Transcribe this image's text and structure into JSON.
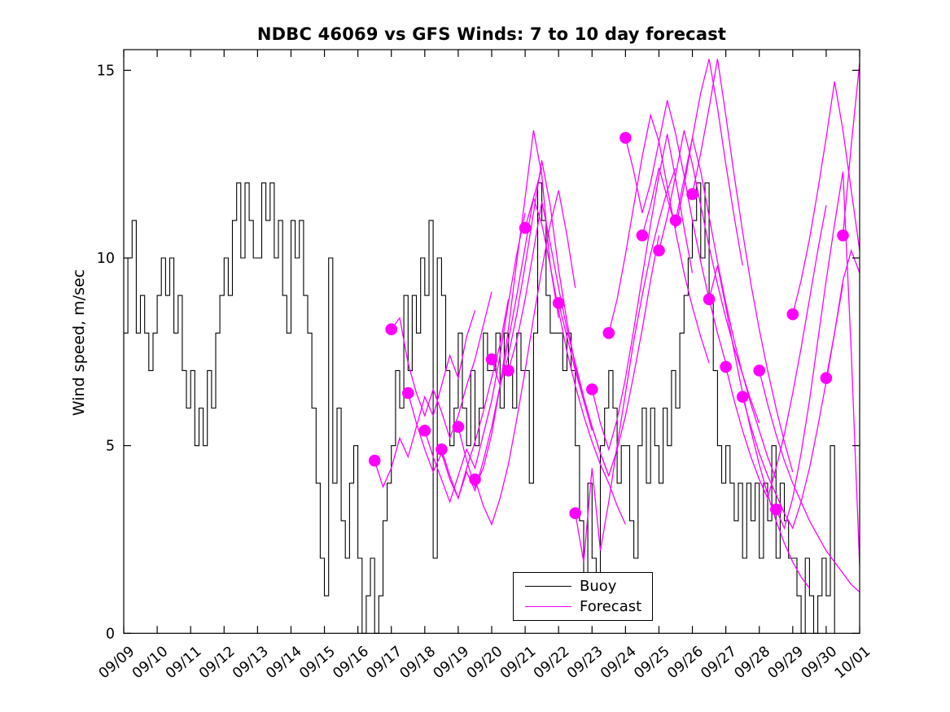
{
  "title": "NDBC 46069 vs GFS Winds: 7 to 10 day forecast",
  "y_axis": {
    "label": "Wind speed, m/sec",
    "tick_labels": [
      "0",
      "5",
      "10",
      "15"
    ],
    "tick_values": [
      0,
      5,
      10,
      15
    ]
  },
  "x_axis": {
    "tick_labels": [
      "09/09",
      "09/10",
      "09/11",
      "09/12",
      "09/13",
      "09/14",
      "09/15",
      "09/16",
      "09/17",
      "09/18",
      "09/19",
      "09/20",
      "09/21",
      "09/22",
      "09/23",
      "09/24",
      "09/25",
      "09/26",
      "09/27",
      "09/28",
      "09/29",
      "09/30",
      "10/01"
    ]
  },
  "legend": {
    "items": [
      {
        "label": "Buoy",
        "color": "#000000"
      },
      {
        "label": "Forecast",
        "color": "#FF00FF"
      }
    ]
  },
  "colors": {
    "buoy": "#000000",
    "forecast": "#FF00FF",
    "axis": "#000000",
    "background": "#FFFFFF"
  },
  "chart_data": {
    "type": "line",
    "title": "NDBC 46069 vs GFS Winds: 7 to 10 day forecast",
    "xlabel": "",
    "ylabel": "Wind speed, m/sec",
    "xlim_days": [
      0,
      22
    ],
    "ylim": [
      0,
      15.55
    ],
    "grid": false,
    "legend_position": "lower-center-right",
    "x_day0_label": "09/09",
    "buoy_series": {
      "name": "Buoy",
      "style": "stairs",
      "t_start_days": 0,
      "t_step_days": 0.125,
      "values": [
        8,
        10,
        11,
        8,
        9,
        8,
        7,
        8,
        9,
        10,
        9,
        10,
        8,
        9,
        7,
        6,
        7,
        5,
        6,
        5,
        7,
        6,
        8,
        9,
        10,
        9,
        11,
        12,
        10,
        12,
        11,
        10,
        10,
        12,
        11,
        12,
        10,
        11,
        9,
        8,
        11,
        10,
        11,
        9,
        8,
        6,
        4,
        2,
        1,
        10,
        4,
        6,
        3,
        2,
        4,
        5,
        2,
        0,
        1,
        2,
        0,
        1,
        3,
        4,
        5,
        7,
        6,
        9,
        7,
        9,
        8,
        10,
        9,
        11,
        2,
        10,
        9,
        7,
        5,
        6,
        8,
        6,
        5,
        7,
        5,
        6,
        8,
        7,
        7,
        8,
        6,
        8,
        7,
        6,
        8,
        7,
        7,
        4,
        8,
        12,
        11,
        9,
        8,
        8,
        8,
        7,
        8,
        7,
        5,
        3,
        1,
        4,
        2,
        1,
        5,
        6,
        7,
        6,
        4,
        5,
        5,
        3,
        2,
        5,
        6,
        4,
        6,
        5,
        4,
        6,
        5,
        7,
        6,
        8,
        9,
        10,
        11,
        12,
        10,
        12,
        9,
        7,
        5,
        4,
        5,
        4,
        3,
        4,
        2,
        4,
        3,
        4,
        2,
        4,
        3,
        5,
        2,
        4,
        3,
        2,
        2,
        1,
        0,
        2,
        1,
        0,
        1,
        2,
        1,
        5,
        0
      ]
    },
    "forecast_segments": {
      "name": "Forecast",
      "t_step_days": 0.25,
      "segments": [
        {
          "start": 7.5,
          "values": [
            4.6,
            3.9,
            4.4,
            5.2,
            4.7,
            5.5,
            6.3,
            5.8,
            6.6,
            7.4,
            6.8,
            7.9,
            8.6
          ]
        },
        {
          "start": 8,
          "values": [
            8.1,
            8.4,
            7.2,
            6.4,
            5.8,
            6.5,
            5.9,
            5.2,
            5.8,
            6.6,
            7.3,
            8.2,
            9.1
          ]
        },
        {
          "start": 8.5,
          "values": [
            6.4,
            5.6,
            4.9,
            4.3,
            4.8,
            4.1,
            3.6,
            4.4,
            5.1,
            5.9,
            6.8,
            7.7,
            8.9
          ]
        },
        {
          "start": 9,
          "values": [
            5.4,
            4.7,
            4.1,
            3.5,
            4.2,
            4.9,
            4.4,
            5.3,
            6.2,
            7.4,
            8.8,
            10.1,
            11.2
          ]
        },
        {
          "start": 9.5,
          "values": [
            4.9,
            4.2,
            3.6,
            4.3,
            3.8,
            4.6,
            5.5,
            6.6,
            7.8,
            9,
            10.3,
            11.6,
            12.4
          ]
        },
        {
          "start": 10,
          "values": [
            5.5,
            4.6,
            3.9,
            4.4,
            5.3,
            6.6,
            8.1,
            9.9,
            11.6,
            13.4,
            12.2,
            9.8,
            8.4
          ]
        },
        {
          "start": 10.5,
          "values": [
            4.1,
            3.4,
            2.9,
            3.6,
            4.5,
            5.7,
            7,
            8.4,
            9.7,
            10.9,
            11.8,
            10.6,
            9.2
          ]
        },
        {
          "start": 11,
          "values": [
            7.3,
            6.6,
            7.4,
            8.5,
            9.8,
            11.2,
            12.6,
            11.4,
            9.7,
            8.3,
            7.1,
            6.2,
            5.4
          ]
        },
        {
          "start": 11.5,
          "values": [
            7,
            7.8,
            8.9,
            10.2,
            11.5,
            10.4,
            9.2,
            8.1,
            7.2,
            6.3,
            5.5,
            4.8,
            4.2
          ]
        },
        {
          "start": 12,
          "values": [
            10.8,
            11.6,
            10.9,
            9.8,
            8.6,
            7.5,
            6.6,
            5.8,
            5.1,
            4.5,
            4,
            3.4,
            2.9
          ]
        },
        {
          "start": 13,
          "values": [
            8.8,
            7.9,
            7,
            6.2,
            5.5,
            4.8,
            4.2,
            4.9,
            5.8,
            6.9,
            8.1,
            9.4,
            10.6
          ]
        },
        {
          "start": 13.5,
          "values": [
            3.2,
            1.9,
            4.4,
            2.2,
            3.5,
            5,
            6.4,
            7.8,
            9,
            10.1,
            11,
            11.8,
            12.4
          ]
        },
        {
          "start": 14,
          "values": [
            6.5,
            5.6,
            4.9,
            5.7,
            6.8,
            8.1,
            9.5,
            10.9,
            12.2,
            13.3,
            12.1,
            10.8,
            9.6
          ]
        },
        {
          "start": 14.5,
          "values": [
            8,
            8.9,
            10.1,
            11.4,
            12.7,
            13.8,
            13.1,
            11.9,
            10.7,
            9.6,
            8.7,
            7.9,
            7.2
          ]
        },
        {
          "start": 15,
          "values": [
            13.2,
            12.3,
            11.2,
            12,
            13.1,
            14.2,
            13.3,
            12.2,
            11,
            9.9,
            8.9,
            8,
            7.2
          ]
        },
        {
          "start": 15.5,
          "values": [
            10.6,
            11.4,
            12.4,
            11.6,
            10.8,
            11.9,
            13.2,
            14.4,
            15.3,
            14,
            12.5,
            11.1,
            9.8
          ]
        },
        {
          "start": 16,
          "values": [
            10.2,
            11.1,
            12.2,
            13.4,
            12.5,
            11.4,
            10.3,
            9.3,
            8.4,
            7.6,
            6.9,
            6.2,
            5.6
          ]
        },
        {
          "start": 16.5,
          "values": [
            11,
            12.1,
            13.2,
            12.3,
            11.1,
            9.9,
            8.8,
            7.8,
            6.9,
            6.1,
            5.4,
            4.7,
            4.1
          ]
        },
        {
          "start": 17,
          "values": [
            11.7,
            12.8,
            14,
            15.3,
            13.8,
            12.2,
            10.7,
            9.3,
            8.1,
            7,
            6,
            5.1,
            4.3
          ]
        },
        {
          "start": 17.5,
          "values": [
            8.9,
            9.8,
            8.7,
            7.5,
            6.4,
            5.4,
            4.5,
            3.7,
            3,
            2.4,
            1.9,
            1.5,
            1.2
          ]
        },
        {
          "start": 18,
          "values": [
            7.1,
            6.2,
            5.4,
            4.7,
            4.1,
            3.6,
            4.4,
            5.3,
            6.4,
            7.6,
            8.9,
            10.2,
            11.4
          ]
        },
        {
          "start": 18.5,
          "values": [
            6.3,
            5.5,
            4.8,
            4.2,
            3.7,
            3.2,
            2.8,
            3.5,
            4.4,
            5.5,
            6.7,
            8,
            9.3
          ]
        },
        {
          "start": 19,
          "values": [
            7,
            6.1,
            5.3,
            4.6,
            4,
            3.5,
            3,
            2.6,
            2.2,
            1.9,
            1.6,
            1.3,
            1.1
          ]
        },
        {
          "start": 19.5,
          "values": [
            3.3,
            2.8,
            3.6,
            4.8,
            6.2,
            7.8,
            9.4,
            10.9,
            12.3,
            7.5,
            1.8
          ]
        },
        {
          "start": 20,
          "values": [
            8.5,
            9.4,
            10.5,
            11.8,
            13.2,
            14.7,
            13.4,
            11.8,
            10.2
          ]
        },
        {
          "start": 21,
          "values": [
            6.8,
            8,
            9.4,
            10.2,
            9.6
          ]
        },
        {
          "start": 21.5,
          "values": [
            10.6,
            13,
            15.2
          ]
        }
      ]
    },
    "forecast_dots": [
      [
        7.5,
        4.6
      ],
      [
        8,
        8.1
      ],
      [
        8.5,
        6.4
      ],
      [
        9,
        5.4
      ],
      [
        9.5,
        4.9
      ],
      [
        10,
        5.5
      ],
      [
        10.5,
        4.1
      ],
      [
        11,
        7.3
      ],
      [
        11.5,
        7
      ],
      [
        12,
        10.8
      ],
      [
        13,
        8.8
      ],
      [
        13.5,
        3.2
      ],
      [
        14,
        6.5
      ],
      [
        14.5,
        8
      ],
      [
        15,
        13.2
      ],
      [
        15.5,
        10.6
      ],
      [
        16,
        10.2
      ],
      [
        16.5,
        11
      ],
      [
        17,
        11.7
      ],
      [
        17.5,
        8.9
      ],
      [
        18,
        7.1
      ],
      [
        18.5,
        6.3
      ],
      [
        19,
        7
      ],
      [
        19.5,
        3.3
      ],
      [
        20,
        8.5
      ],
      [
        21,
        6.8
      ],
      [
        21.5,
        10.6
      ]
    ]
  }
}
